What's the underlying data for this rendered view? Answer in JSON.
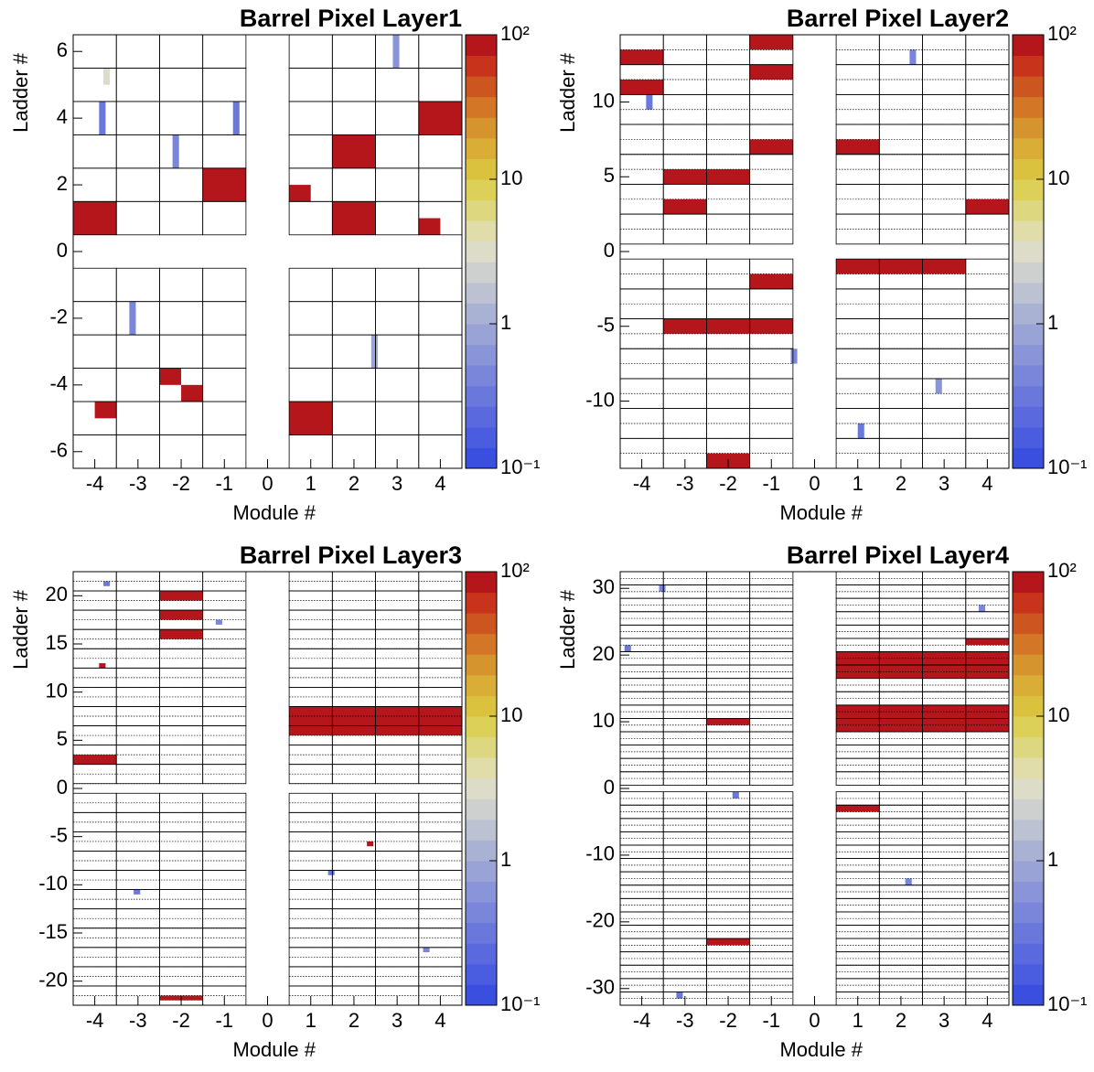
{
  "chart_data": [
    {
      "type": "heatmap",
      "title": "Barrel Pixel Layer1",
      "x_label": "Module #",
      "y_label": "Ladder #",
      "xlim": [
        -4.5,
        4.5
      ],
      "ylim": [
        -6.5,
        6.5
      ],
      "xticks": [
        -4,
        -3,
        -2,
        -1,
        0,
        1,
        2,
        3,
        4
      ],
      "yticks": [
        -6,
        -4,
        -2,
        0,
        2,
        4,
        6
      ],
      "zlim": [
        0.1,
        100
      ],
      "log_z": true,
      "zticks": [
        {
          "value": 0.1,
          "label": "10⁻¹"
        },
        1,
        10,
        {
          "value": 100,
          "label": "10²"
        }
      ],
      "colorscale": [
        "#3a4ee0",
        "#4a5ce0",
        "#5a6ade",
        "#6a78dc",
        "#7a86da",
        "#8a94d8",
        "#9aa3d6",
        "#aab2d4",
        "#bcc2d2",
        "#cdd0cf",
        "#dcdcc8",
        "#e0ddaa",
        "#ddd880",
        "#dcd058",
        "#dbc23e",
        "#d9ad36",
        "#d6942e",
        "#d37726",
        "#cd5620",
        "#c8331c",
        "#b5161c"
      ],
      "cells": [
        {
          "x": [
            -4.5,
            -3.5
          ],
          "y": [
            0.5,
            1.5
          ],
          "value": 100
        },
        {
          "x": [
            -1.5,
            -0.5
          ],
          "y": [
            1.5,
            2.5
          ],
          "value": 100
        },
        {
          "x": [
            0.5,
            1.0
          ],
          "y": [
            1.5,
            2.0
          ],
          "value": 100
        },
        {
          "x": [
            1.5,
            2.5
          ],
          "y": [
            0.5,
            1.5
          ],
          "value": 100
        },
        {
          "x": [
            1.5,
            2.5
          ],
          "y": [
            2.5,
            3.5
          ],
          "value": 100
        },
        {
          "x": [
            3.5,
            4.5
          ],
          "y": [
            3.5,
            4.5
          ],
          "value": 100
        },
        {
          "x": [
            3.5,
            4.0
          ],
          "y": [
            0.5,
            1.0
          ],
          "value": 100
        },
        {
          "x": [
            0.5,
            1.5
          ],
          "y": [
            -5.5,
            -4.5
          ],
          "value": 100
        },
        {
          "x": [
            -4.0,
            -3.5
          ],
          "y": [
            -5.0,
            -4.5
          ],
          "value": 100
        },
        {
          "x": [
            -2.5,
            -2.0
          ],
          "y": [
            -4.0,
            -3.5
          ],
          "value": 100
        },
        {
          "x": [
            -2.0,
            -1.5
          ],
          "y": [
            -4.5,
            -4.0
          ],
          "value": 100
        },
        {
          "x": [
            -3.9,
            -3.75
          ],
          "y": [
            3.5,
            4.5
          ],
          "value": 0.3
        },
        {
          "x": [
            -2.2,
            -2.05
          ],
          "y": [
            2.5,
            3.5
          ],
          "value": 0.5
        },
        {
          "x": [
            -0.8,
            -0.65
          ],
          "y": [
            3.5,
            4.5
          ],
          "value": 0.3
        },
        {
          "x": [
            2.9,
            3.05
          ],
          "y": [
            5.5,
            6.5
          ],
          "value": 0.6
        },
        {
          "x": [
            -3.2,
            -3.05
          ],
          "y": [
            -2.5,
            -1.5
          ],
          "value": 0.4
        },
        {
          "x": [
            2.4,
            2.55
          ],
          "y": [
            -3.5,
            -2.5
          ],
          "value": 0.8
        },
        {
          "x": [
            -3.8,
            -3.65
          ],
          "y": [
            5.0,
            5.5
          ],
          "value": 3
        }
      ]
    },
    {
      "type": "heatmap",
      "title": "Barrel Pixel Layer2",
      "x_label": "Module #",
      "y_label": "Ladder #",
      "xlim": [
        -4.5,
        4.5
      ],
      "ylim": [
        -14.5,
        14.5
      ],
      "xticks": [
        -4,
        -3,
        -2,
        -1,
        0,
        1,
        2,
        3,
        4
      ],
      "yticks": [
        -10,
        -5,
        0,
        5,
        10
      ],
      "zlim": [
        0.1,
        100
      ],
      "log_z": true,
      "zticks": [
        {
          "value": 0.1,
          "label": "10⁻¹"
        },
        1,
        10,
        {
          "value": 100,
          "label": "10²"
        }
      ],
      "colorscale": [
        "#3a4ee0",
        "#4a5ce0",
        "#5a6ade",
        "#6a78dc",
        "#7a86da",
        "#8a94d8",
        "#9aa3d6",
        "#aab2d4",
        "#bcc2d2",
        "#cdd0cf",
        "#dcdcc8",
        "#e0ddaa",
        "#ddd880",
        "#dcd058",
        "#dbc23e",
        "#d9ad36",
        "#d6942e",
        "#d37726",
        "#cd5620",
        "#c8331c",
        "#b5161c"
      ],
      "cells": [
        {
          "x": [
            -4.5,
            -3.5
          ],
          "y": [
            12.5,
            13.5
          ],
          "value": 100
        },
        {
          "x": [
            -4.5,
            -3.5
          ],
          "y": [
            10.5,
            11.5
          ],
          "value": 100
        },
        {
          "x": [
            -3.5,
            -1.5
          ],
          "y": [
            4.5,
            5.5
          ],
          "value": 100
        },
        {
          "x": [
            -3.5,
            -2.5
          ],
          "y": [
            2.5,
            3.5
          ],
          "value": 100
        },
        {
          "x": [
            -1.5,
            -0.5
          ],
          "y": [
            13.5,
            14.5
          ],
          "value": 100
        },
        {
          "x": [
            -1.5,
            -0.5
          ],
          "y": [
            11.5,
            12.5
          ],
          "value": 100
        },
        {
          "x": [
            -1.5,
            -0.5
          ],
          "y": [
            6.5,
            7.5
          ],
          "value": 100
        },
        {
          "x": [
            0.5,
            1.5
          ],
          "y": [
            6.5,
            7.5
          ],
          "value": 100
        },
        {
          "x": [
            3.5,
            4.5
          ],
          "y": [
            2.5,
            3.5
          ],
          "value": 100
        },
        {
          "x": [
            0.5,
            3.5
          ],
          "y": [
            -1.5,
            -0.5
          ],
          "value": 100
        },
        {
          "x": [
            -1.5,
            -0.5
          ],
          "y": [
            -2.5,
            -1.5
          ],
          "value": 100
        },
        {
          "x": [
            -3.5,
            -0.5
          ],
          "y": [
            -5.5,
            -4.5
          ],
          "value": 100
        },
        {
          "x": [
            -2.5,
            -1.5
          ],
          "y": [
            -14.5,
            -13.5
          ],
          "value": 100
        },
        {
          "x": [
            -3.9,
            -3.75
          ],
          "y": [
            9.5,
            10.5
          ],
          "value": 0.3
        },
        {
          "x": [
            2.2,
            2.35
          ],
          "y": [
            12.5,
            13.5
          ],
          "value": 0.4
        },
        {
          "x": [
            -0.4,
            -0.55
          ],
          "y": [
            -7.5,
            -6.5
          ],
          "value": 0.5
        },
        {
          "x": [
            1.0,
            1.15
          ],
          "y": [
            -12.5,
            -11.5
          ],
          "value": 0.3
        },
        {
          "x": [
            2.8,
            2.95
          ],
          "y": [
            -9.5,
            -8.5
          ],
          "value": 0.6
        }
      ]
    },
    {
      "type": "heatmap",
      "title": "Barrel Pixel Layer3",
      "x_label": "Module #",
      "y_label": "Ladder #",
      "xlim": [
        -4.5,
        4.5
      ],
      "ylim": [
        -22.5,
        22.5
      ],
      "xticks": [
        -4,
        -3,
        -2,
        -1,
        0,
        1,
        2,
        3,
        4
      ],
      "yticks": [
        -20,
        -15,
        -10,
        -5,
        0,
        5,
        10,
        15,
        20
      ],
      "zlim": [
        0.1,
        100
      ],
      "log_z": true,
      "zticks": [
        {
          "value": 0.1,
          "label": "10⁻¹"
        },
        1,
        10,
        {
          "value": 100,
          "label": "10²"
        }
      ],
      "colorscale": [
        "#3a4ee0",
        "#4a5ce0",
        "#5a6ade",
        "#6a78dc",
        "#7a86da",
        "#8a94d8",
        "#9aa3d6",
        "#aab2d4",
        "#bcc2d2",
        "#cdd0cf",
        "#dcdcc8",
        "#e0ddaa",
        "#ddd880",
        "#dcd058",
        "#dbc23e",
        "#d9ad36",
        "#d6942e",
        "#d37726",
        "#cd5620",
        "#c8331c",
        "#b5161c"
      ],
      "cells": [
        {
          "x": [
            -2.5,
            -1.5
          ],
          "y": [
            19.5,
            20.5
          ],
          "value": 100
        },
        {
          "x": [
            -2.5,
            -1.5
          ],
          "y": [
            17.5,
            18.5
          ],
          "value": 100
        },
        {
          "x": [
            -2.5,
            -1.5
          ],
          "y": [
            15.5,
            16.5
          ],
          "value": 100
        },
        {
          "x": [
            -4.5,
            -3.5
          ],
          "y": [
            2.5,
            3.5
          ],
          "value": 100
        },
        {
          "x": [
            0.5,
            4.5
          ],
          "y": [
            5.5,
            8.5
          ],
          "value": 100
        },
        {
          "x": [
            -2.5,
            -1.5
          ],
          "y": [
            -22.0,
            -21.5
          ],
          "value": 100
        },
        {
          "x": [
            -3.9,
            -3.75
          ],
          "y": [
            12.5,
            13.0
          ],
          "value": 100
        },
        {
          "x": [
            2.3,
            2.45
          ],
          "y": [
            -6.0,
            -5.5
          ],
          "value": 100
        },
        {
          "x": [
            -3.8,
            -3.65
          ],
          "y": [
            21.0,
            21.5
          ],
          "value": 0.3
        },
        {
          "x": [
            -1.2,
            -1.05
          ],
          "y": [
            17.0,
            17.5
          ],
          "value": 0.4
        },
        {
          "x": [
            1.4,
            1.55
          ],
          "y": [
            -9.0,
            -8.5
          ],
          "value": 0.3
        },
        {
          "x": [
            3.6,
            3.75
          ],
          "y": [
            -17.0,
            -16.5
          ],
          "value": 0.5
        },
        {
          "x": [
            -3.1,
            -2.95
          ],
          "y": [
            -11.0,
            -10.5
          ],
          "value": 0.3
        }
      ]
    },
    {
      "type": "heatmap",
      "title": "Barrel Pixel Layer4",
      "x_label": "Module #",
      "y_label": "Ladder #",
      "xlim": [
        -4.5,
        4.5
      ],
      "ylim": [
        -32.5,
        32.5
      ],
      "xticks": [
        -4,
        -3,
        -2,
        -1,
        0,
        1,
        2,
        3,
        4
      ],
      "yticks": [
        -30,
        -20,
        -10,
        0,
        10,
        20,
        30
      ],
      "zlim": [
        0.1,
        100
      ],
      "log_z": true,
      "zticks": [
        {
          "value": 0.1,
          "label": "10⁻¹"
        },
        1,
        10,
        {
          "value": 100,
          "label": "10²"
        }
      ],
      "colorscale": [
        "#3a4ee0",
        "#4a5ce0",
        "#5a6ade",
        "#6a78dc",
        "#7a86da",
        "#8a94d8",
        "#9aa3d6",
        "#aab2d4",
        "#bcc2d2",
        "#cdd0cf",
        "#dcdcc8",
        "#e0ddaa",
        "#ddd880",
        "#dcd058",
        "#dbc23e",
        "#d9ad36",
        "#d6942e",
        "#d37726",
        "#cd5620",
        "#c8331c",
        "#b5161c"
      ],
      "cells": [
        {
          "x": [
            -2.5,
            -1.5
          ],
          "y": [
            9.5,
            10.5
          ],
          "value": 100
        },
        {
          "x": [
            0.5,
            4.5
          ],
          "y": [
            16.5,
            20.5
          ],
          "value": 100
        },
        {
          "x": [
            0.5,
            4.5
          ],
          "y": [
            8.5,
            12.5
          ],
          "value": 100
        },
        {
          "x": [
            3.5,
            4.5
          ],
          "y": [
            21.5,
            22.5
          ],
          "value": 100
        },
        {
          "x": [
            0.5,
            1.5
          ],
          "y": [
            -3.5,
            -2.5
          ],
          "value": 100
        },
        {
          "x": [
            -2.5,
            -1.5
          ],
          "y": [
            -23.5,
            -22.5
          ],
          "value": 100
        },
        {
          "x": [
            -4.4,
            -4.25
          ],
          "y": [
            20.5,
            21.5
          ],
          "value": 0.3
        },
        {
          "x": [
            -3.6,
            -3.45
          ],
          "y": [
            29.5,
            30.5
          ],
          "value": 0.4
        },
        {
          "x": [
            -1.9,
            -1.75
          ],
          "y": [
            -0.5,
            -1.5
          ],
          "value": 0.3
        },
        {
          "x": [
            2.1,
            2.25
          ],
          "y": [
            -14.5,
            -13.5
          ],
          "value": 0.5
        },
        {
          "x": [
            -3.2,
            -3.05
          ],
          "y": [
            -31.5,
            -30.5
          ],
          "value": 0.3
        },
        {
          "x": [
            3.8,
            3.95
          ],
          "y": [
            26.5,
            27.5
          ],
          "value": 0.4
        }
      ]
    }
  ]
}
